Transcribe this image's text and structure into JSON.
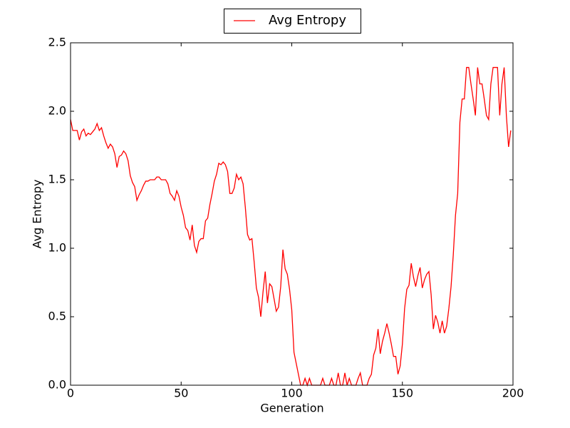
{
  "chart_data": {
    "type": "line",
    "x_label": "Generation",
    "y_label": "Avg Entropy",
    "x": [
      0,
      1,
      2,
      3,
      4,
      5,
      6,
      7,
      8,
      9,
      10,
      11,
      12,
      13,
      14,
      15,
      16,
      17,
      18,
      19,
      20,
      21,
      22,
      23,
      24,
      25,
      26,
      27,
      28,
      29,
      30,
      31,
      32,
      33,
      34,
      35,
      36,
      37,
      38,
      39,
      40,
      41,
      42,
      43,
      44,
      45,
      46,
      47,
      48,
      49,
      50,
      51,
      52,
      53,
      54,
      55,
      56,
      57,
      58,
      59,
      60,
      61,
      62,
      63,
      64,
      65,
      66,
      67,
      68,
      69,
      70,
      71,
      72,
      73,
      74,
      75,
      76,
      77,
      78,
      79,
      80,
      81,
      82,
      83,
      84,
      85,
      86,
      87,
      88,
      89,
      90,
      91,
      92,
      93,
      94,
      95,
      96,
      97,
      98,
      99,
      100,
      101,
      102,
      103,
      104,
      105,
      106,
      107,
      108,
      109,
      110,
      111,
      112,
      113,
      114,
      115,
      116,
      117,
      118,
      119,
      120,
      121,
      122,
      123,
      124,
      125,
      126,
      127,
      128,
      129,
      130,
      131,
      132,
      133,
      134,
      135,
      136,
      137,
      138,
      139,
      140,
      141,
      142,
      143,
      144,
      145,
      146,
      147,
      148,
      149,
      150,
      151,
      152,
      153,
      154,
      155,
      156,
      157,
      158,
      159,
      160,
      161,
      162,
      163,
      164,
      165,
      166,
      167,
      168,
      169,
      170,
      171,
      172,
      173,
      174,
      175,
      176,
      177,
      178,
      179,
      180,
      181,
      182,
      183,
      184,
      185,
      186,
      187,
      188,
      189,
      190,
      191,
      192,
      193,
      194,
      195,
      196,
      197,
      198,
      199
    ],
    "series": [
      {
        "name": "Avg Entropy",
        "color": "#ff0000",
        "values": [
          1.94,
          1.86,
          1.86,
          1.86,
          1.79,
          1.85,
          1.87,
          1.82,
          1.84,
          1.83,
          1.85,
          1.87,
          1.91,
          1.86,
          1.88,
          1.82,
          1.77,
          1.73,
          1.76,
          1.74,
          1.69,
          1.59,
          1.67,
          1.68,
          1.71,
          1.69,
          1.64,
          1.53,
          1.48,
          1.45,
          1.35,
          1.39,
          1.42,
          1.46,
          1.49,
          1.49,
          1.5,
          1.5,
          1.5,
          1.52,
          1.52,
          1.5,
          1.5,
          1.5,
          1.47,
          1.4,
          1.38,
          1.35,
          1.42,
          1.38,
          1.3,
          1.24,
          1.15,
          1.13,
          1.06,
          1.17,
          1.02,
          0.97,
          1.05,
          1.07,
          1.07,
          1.2,
          1.22,
          1.32,
          1.4,
          1.49,
          1.54,
          1.62,
          1.61,
          1.63,
          1.61,
          1.56,
          1.4,
          1.4,
          1.44,
          1.54,
          1.5,
          1.52,
          1.47,
          1.3,
          1.1,
          1.06,
          1.07,
          0.9,
          0.71,
          0.64,
          0.5,
          0.68,
          0.83,
          0.6,
          0.74,
          0.72,
          0.63,
          0.54,
          0.57,
          0.72,
          0.99,
          0.85,
          0.81,
          0.7,
          0.55,
          0.24,
          0.16,
          0.08,
          0.0,
          0.0,
          0.05,
          0.0,
          0.05,
          0.0,
          0.0,
          0.0,
          0.0,
          0.0,
          0.05,
          0.0,
          0.0,
          0.0,
          0.05,
          0.0,
          0.0,
          0.09,
          0.0,
          0.0,
          0.09,
          0.0,
          0.05,
          0.0,
          0.0,
          0.0,
          0.05,
          0.09,
          0.0,
          0.0,
          0.0,
          0.05,
          0.08,
          0.22,
          0.27,
          0.41,
          0.23,
          0.32,
          0.38,
          0.45,
          0.38,
          0.3,
          0.21,
          0.21,
          0.08,
          0.14,
          0.3,
          0.56,
          0.7,
          0.73,
          0.89,
          0.79,
          0.72,
          0.8,
          0.86,
          0.71,
          0.77,
          0.81,
          0.83,
          0.66,
          0.41,
          0.51,
          0.46,
          0.38,
          0.47,
          0.38,
          0.43,
          0.56,
          0.72,
          0.95,
          1.24,
          1.4,
          1.92,
          2.09,
          2.09,
          2.32,
          2.32,
          2.2,
          2.09,
          1.97,
          2.32,
          2.2,
          2.2,
          2.09,
          1.97,
          1.94,
          2.2,
          2.32,
          2.32,
          2.32,
          1.97,
          2.2,
          2.32,
          1.97,
          1.74,
          1.86
        ]
      }
    ],
    "xlim": [
      0,
      200
    ],
    "xticks": [
      0,
      50,
      100,
      150,
      200
    ],
    "ylim": [
      0,
      2.5
    ],
    "yticks": [
      {
        "value": 0,
        "label": "0.0"
      },
      0.5,
      {
        "value": 1,
        "label": "1.0"
      },
      1.5,
      {
        "value": 2,
        "label": "2.0"
      },
      2.5
    ],
    "legend": "top"
  }
}
